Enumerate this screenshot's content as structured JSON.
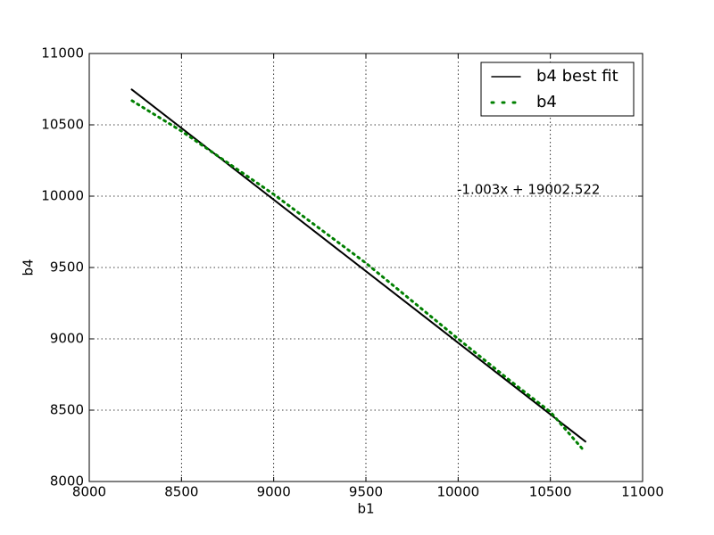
{
  "chart_data": {
    "type": "line",
    "xlabel": "b1",
    "ylabel": "b4",
    "annotation": "-1.003x + 19002.522",
    "xlim": [
      8000,
      11000
    ],
    "xticks": [
      8000,
      8500,
      9000,
      9500,
      10000,
      10500,
      11000
    ],
    "ylim": [
      8000,
      11000
    ],
    "yticks": [
      8000,
      8500,
      9000,
      9500,
      10000,
      10500,
      11000
    ],
    "grid": true,
    "legend": "upper right",
    "series": [
      {
        "name": "b4 best fit",
        "color": "#000000",
        "linestyle": "solid",
        "x": [
          8230,
          10690
        ],
        "values": [
          10748,
          8280
        ]
      },
      {
        "name": "b4",
        "color": "#008000",
        "linestyle": "dotted",
        "x": [
          8232,
          8500,
          9000,
          9500,
          10000,
          10300,
          10500,
          10680
        ],
        "values": [
          10669,
          10456,
          10013,
          9531,
          9000,
          8688,
          8488,
          8219
        ]
      }
    ]
  }
}
